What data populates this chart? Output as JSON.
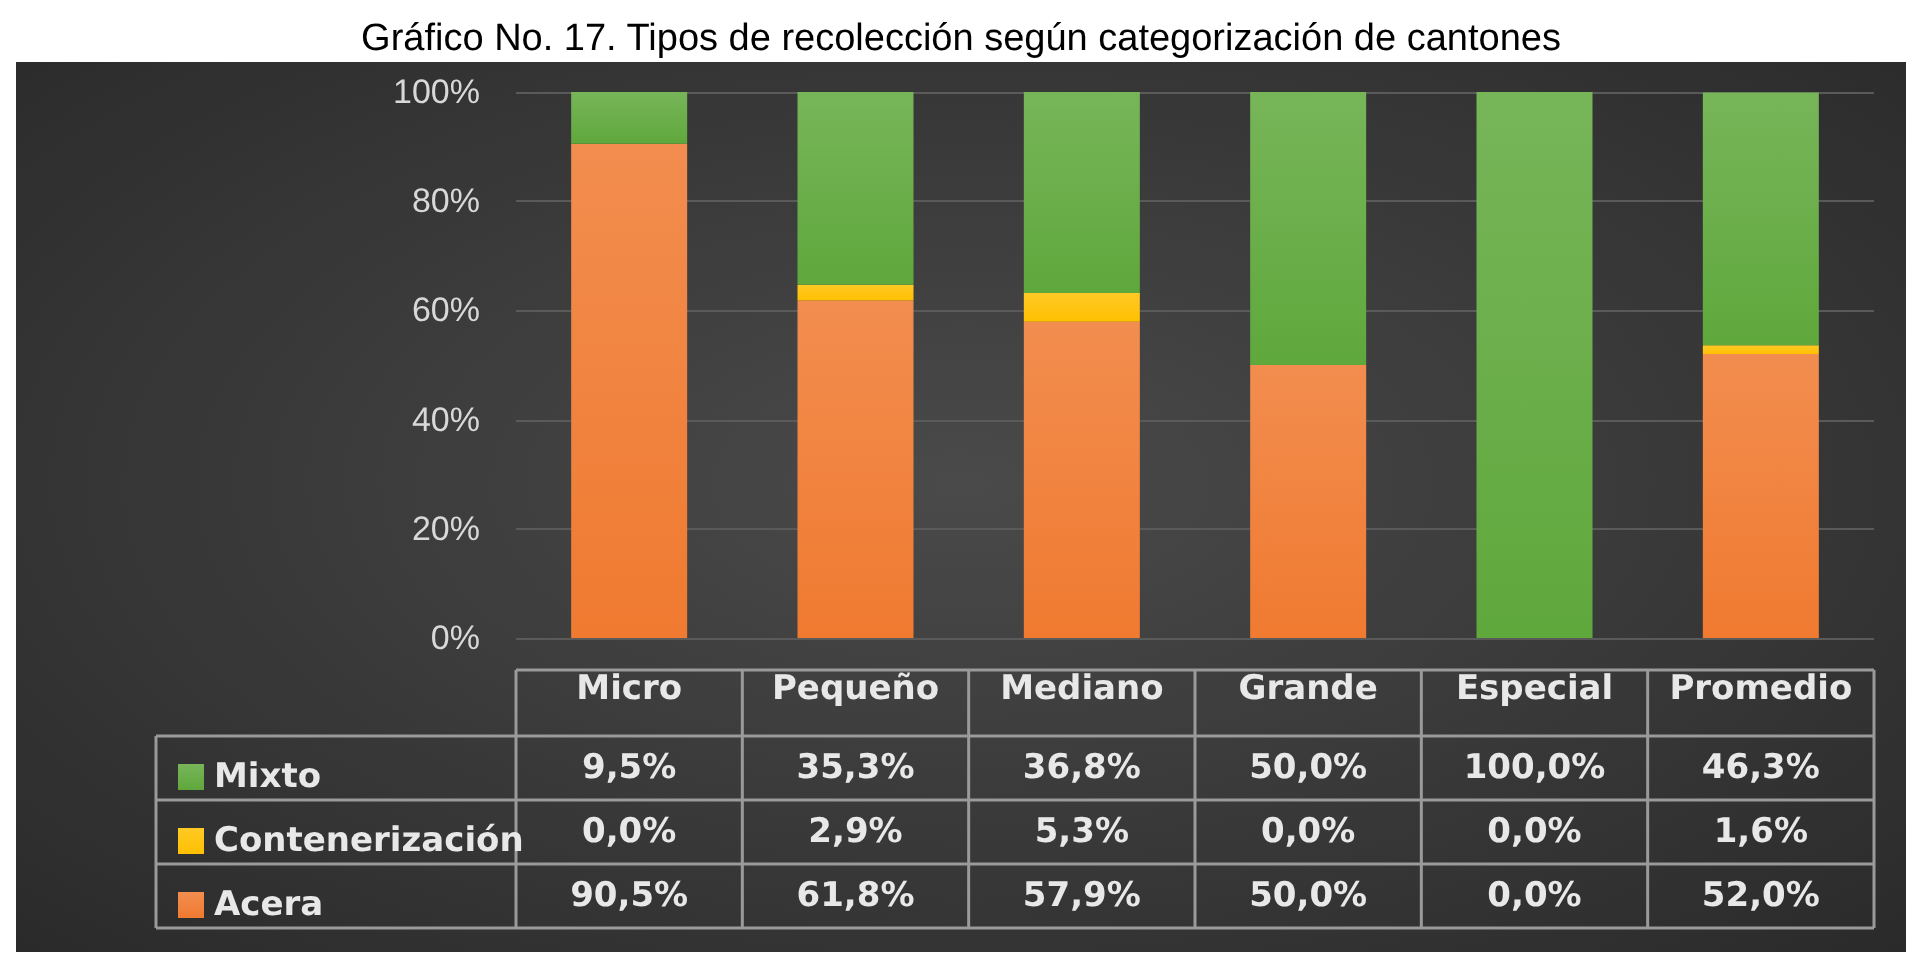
{
  "chart_data": {
    "type": "bar",
    "title": "Gráfico No. 17. Tipos de recolección según categorización de cantones",
    "categories": [
      "Micro",
      "Pequeño",
      "Mediano",
      "Grande",
      "Especial",
      "Promedio"
    ],
    "stacked": true,
    "series": [
      {
        "name": "Acera",
        "color": "#f07a30",
        "values": [
          90.5,
          61.8,
          57.9,
          50.0,
          0.0,
          52.0
        ],
        "value_labels": [
          "90,5%",
          "61,8%",
          "57,9%",
          "50,0%",
          "0,0%",
          "52,0%"
        ]
      },
      {
        "name": "Contenerización",
        "color": "#ffc000",
        "values": [
          0.0,
          2.9,
          5.3,
          0.0,
          0.0,
          1.6
        ],
        "value_labels": [
          "0,0%",
          "2,9%",
          "5,3%",
          "0,0%",
          "0,0%",
          "1,6%"
        ]
      },
      {
        "name": "Mixto",
        "color": "#5fa83c",
        "values": [
          9.5,
          35.3,
          36.8,
          50.0,
          100.0,
          46.3
        ],
        "value_labels": [
          "9,5%",
          "35,3%",
          "36,8%",
          "50,0%",
          "100,0%",
          "46,3%"
        ]
      }
    ],
    "ylim": [
      0,
      100
    ],
    "yticks": [
      {
        "value": 0,
        "label": "0%"
      },
      {
        "value": 20,
        "label": "20%"
      },
      {
        "value": 40,
        "label": "40%"
      },
      {
        "value": 60,
        "label": "60%"
      },
      {
        "value": 80,
        "label": "80%"
      },
      {
        "value": 100,
        "label": "100%"
      }
    ],
    "grid": "y",
    "legend": "bottom left"
  }
}
